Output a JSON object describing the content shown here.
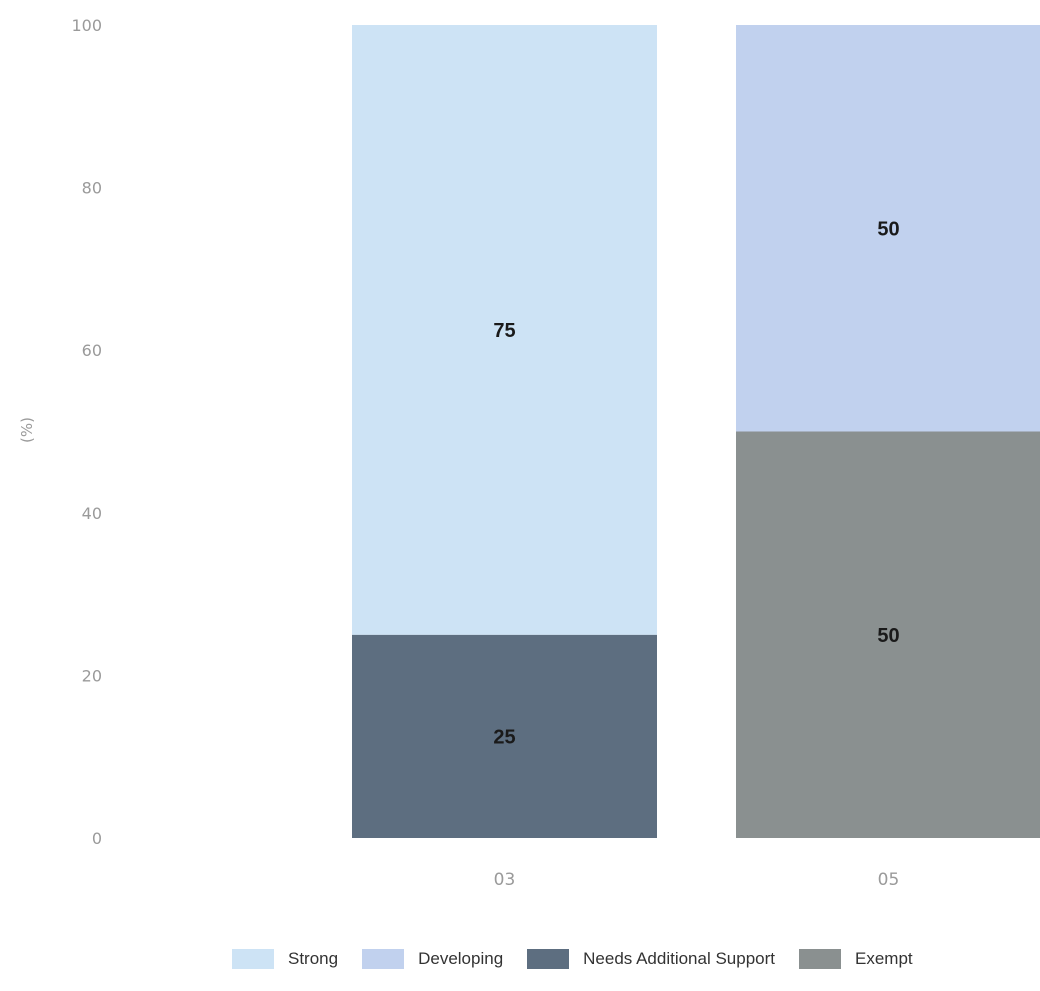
{
  "chart_data": {
    "type": "bar",
    "stacked": true,
    "categories": [
      "03",
      "05"
    ],
    "series": [
      {
        "name": "Strong",
        "color": "#cde3f5",
        "values": [
          75,
          0
        ]
      },
      {
        "name": "Developing",
        "color": "#c1d1ee",
        "values": [
          0,
          50
        ]
      },
      {
        "name": "Needs Additional Support",
        "color": "#5d6e80",
        "values": [
          25,
          0
        ]
      },
      {
        "name": "Exempt",
        "color": "#8a9090",
        "values": [
          0,
          50
        ]
      }
    ],
    "stack_order_bottom_to_top": [
      "Needs Additional Support",
      "Exempt",
      "Strong",
      "Developing"
    ],
    "ylabel": "(%)",
    "ylim": [
      0,
      100
    ],
    "yticks": [
      "0",
      "20",
      "40",
      "60",
      "80",
      "100"
    ],
    "data_labels": true,
    "grid": false,
    "legend_position": "bottom"
  }
}
